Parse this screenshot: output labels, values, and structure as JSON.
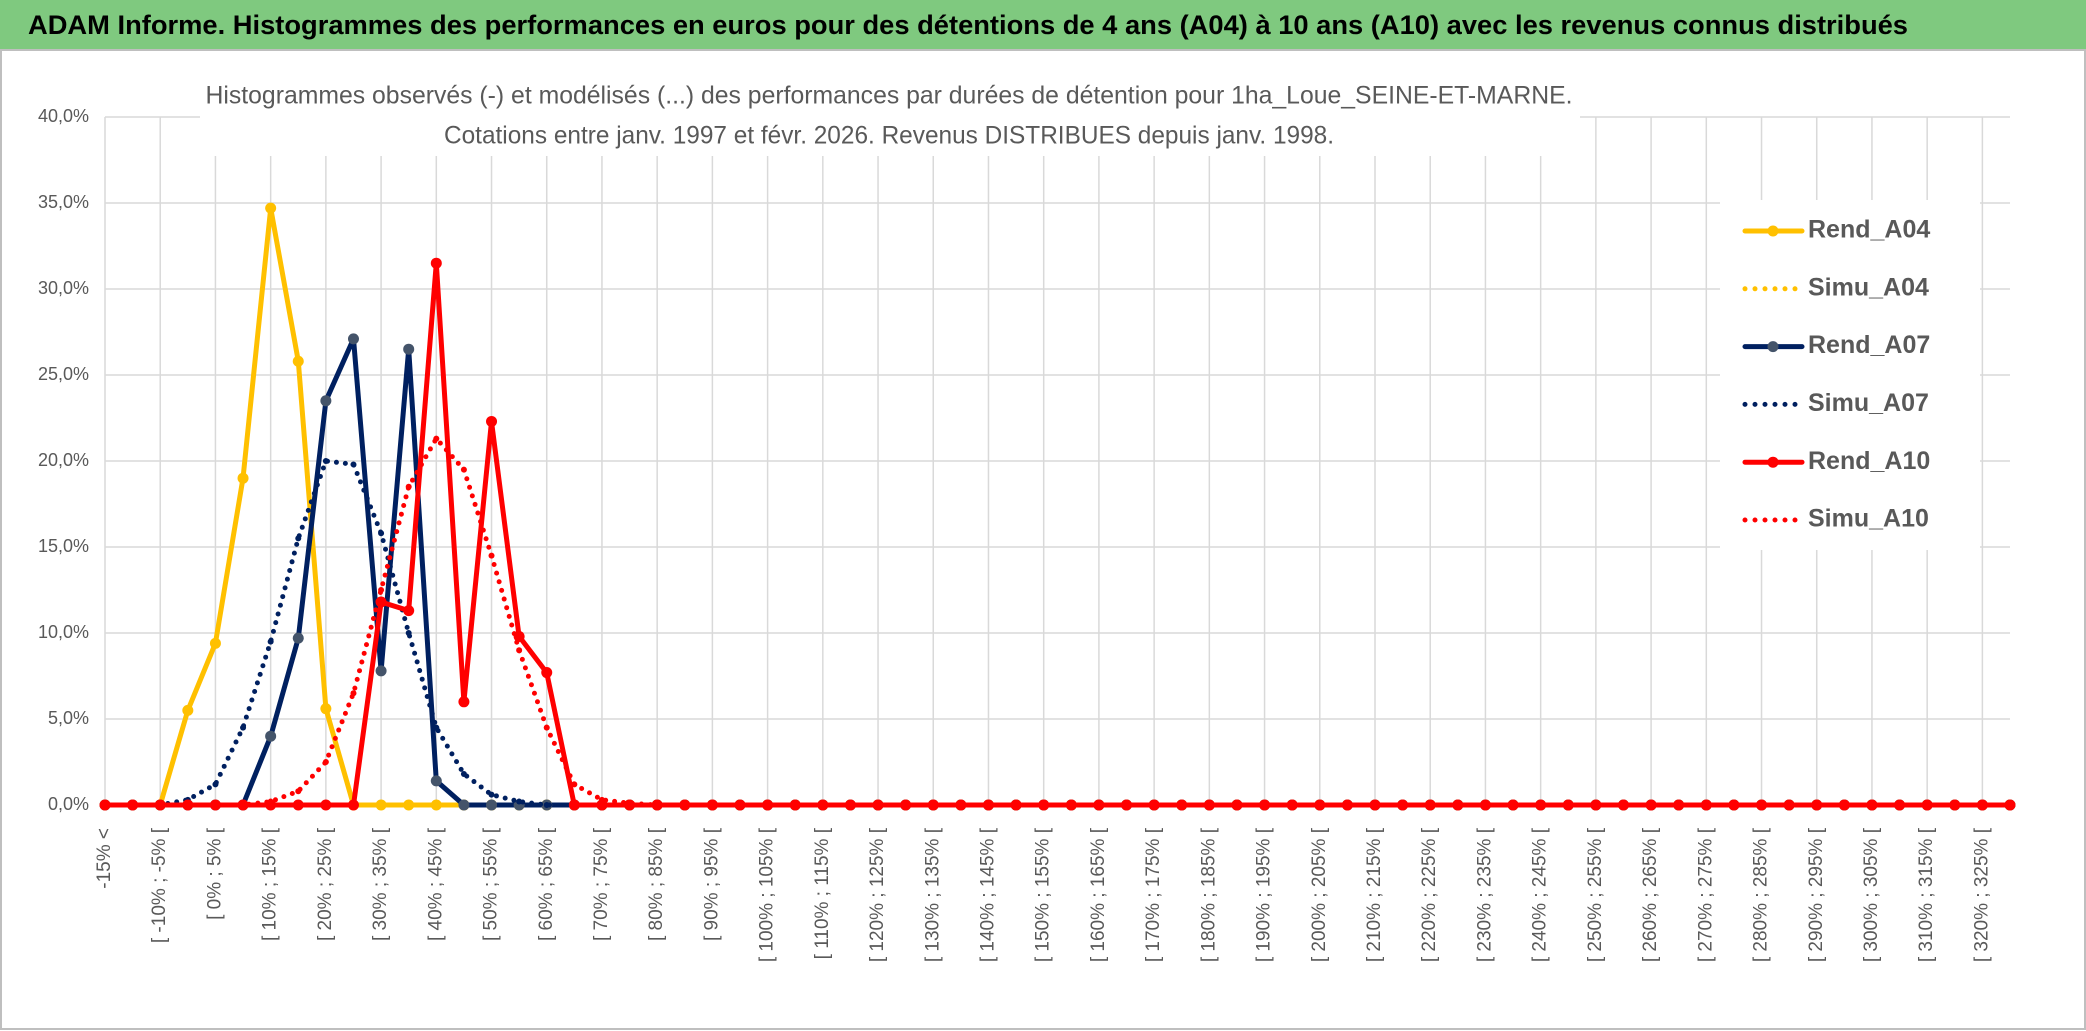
{
  "page_title": "ADAM Informe. Histogrammes des performances en euros pour des détentions de 4 ans (A04) à 10 ans (A10) avec les revenus connus distribués",
  "chart_data": {
    "type": "line",
    "title": "Histogrammes observés (-) et modélisés (...) des performances par durées de détention pour 1ha_Loue_SEINE-ET-MARNE.",
    "subtitle": "Cotations entre janv. 1997 et févr. 2026. Revenus DISTRIBUES depuis janv. 1998.",
    "categories": [
      "-15% <",
      null,
      "[ -10% ; -5% [",
      null,
      "[ 0% ; 5% [",
      null,
      "[ 10% ; 15% [",
      null,
      "[ 20% ; 25% [",
      null,
      "[ 30% ; 35% [",
      null,
      "[ 40% ; 45% [",
      null,
      "[ 50% ; 55% [",
      null,
      "[ 60% ; 65% [",
      null,
      "[ 70% ; 75% [",
      null,
      "[ 80% ; 85% [",
      null,
      "[ 90% ; 95% [",
      null,
      "[ 100% ; 105% [",
      null,
      "[ 110% ; 115% [",
      null,
      "[ 120% ; 125% [",
      null,
      "[ 130% ; 135% [",
      null,
      "[ 140% ; 145% [",
      null,
      "[ 150% ; 155% [",
      null,
      "[ 160% ; 165% [",
      null,
      "[ 170% ; 175% [",
      null,
      "[ 180% ; 185% [",
      null,
      "[ 190% ; 195% [",
      null,
      "[ 200% ; 205% [",
      null,
      "[ 210% ; 215% [",
      null,
      "[ 220% ; 225% [",
      null,
      "[ 230% ; 235% [",
      null,
      "[ 240% ; 245% [",
      null,
      "[ 250% ; 255% [",
      null,
      "[ 260% ; 265% [",
      null,
      "[ 270% ; 275% [",
      null,
      "[ 280% ; 285% [",
      null,
      "[ 290% ; 295% [",
      null,
      "[ 300% ; 305% [",
      null,
      "[ 310% ; 315% [",
      null,
      "[ 320% ; 325% [",
      null
    ],
    "series": [
      {
        "name": "Rend_A04",
        "color": "#ffc000",
        "style": "solid",
        "values": [
          0,
          0,
          0,
          5.5,
          9.4,
          19.0,
          34.7,
          25.8,
          5.6,
          0,
          0,
          0,
          0,
          0,
          0,
          0,
          0,
          0,
          0,
          0,
          0,
          0,
          0,
          0,
          0,
          0,
          0,
          0,
          0,
          0,
          0,
          0,
          0,
          0,
          0,
          0,
          0,
          0,
          0,
          0,
          0,
          0,
          0,
          0,
          0,
          0,
          0,
          0,
          0,
          0,
          0,
          0,
          0,
          0,
          0,
          0,
          0,
          0,
          0,
          0,
          0,
          0,
          0,
          0,
          0,
          0,
          0,
          0,
          0,
          0
        ]
      },
      {
        "name": "Simu_A04",
        "color": "#ffc000",
        "style": "dotted",
        "values": [
          0,
          0,
          0,
          0,
          0,
          0,
          0,
          0,
          0,
          0,
          0,
          0,
          0,
          0,
          0,
          0,
          0,
          0,
          0,
          0,
          0,
          0,
          0,
          0,
          0,
          0,
          0,
          0,
          0,
          0,
          0,
          0,
          0,
          0,
          0,
          0,
          0,
          0,
          0,
          0,
          0,
          0,
          0,
          0,
          0,
          0,
          0,
          0,
          0,
          0,
          0,
          0,
          0,
          0,
          0,
          0,
          0,
          0,
          0,
          0,
          0,
          0,
          0,
          0,
          0,
          0,
          0,
          0,
          0,
          0
        ]
      },
      {
        "name": "Rend_A07",
        "color": "#002060",
        "style": "solid",
        "values": [
          0,
          0,
          0,
          0,
          0,
          0,
          4.0,
          9.7,
          23.5,
          27.1,
          7.8,
          26.5,
          1.4,
          0,
          0,
          0,
          0,
          0,
          0,
          0,
          0,
          0,
          0,
          0,
          0,
          0,
          0,
          0,
          0,
          0,
          0,
          0,
          0,
          0,
          0,
          0,
          0,
          0,
          0,
          0,
          0,
          0,
          0,
          0,
          0,
          0,
          0,
          0,
          0,
          0,
          0,
          0,
          0,
          0,
          0,
          0,
          0,
          0,
          0,
          0,
          0,
          0,
          0,
          0,
          0,
          0,
          0,
          0,
          0,
          0
        ]
      },
      {
        "name": "Simu_A07",
        "color": "#002060",
        "style": "dotted",
        "values": [
          0,
          0,
          0,
          0.3,
          1.2,
          4.5,
          9.5,
          15.5,
          20.0,
          19.8,
          15.8,
          10.0,
          4.5,
          1.8,
          0.6,
          0.2,
          0,
          0,
          0,
          0,
          0,
          0,
          0,
          0,
          0,
          0,
          0,
          0,
          0,
          0,
          0,
          0,
          0,
          0,
          0,
          0,
          0,
          0,
          0,
          0,
          0,
          0,
          0,
          0,
          0,
          0,
          0,
          0,
          0,
          0,
          0,
          0,
          0,
          0,
          0,
          0,
          0,
          0,
          0,
          0,
          0,
          0,
          0,
          0,
          0,
          0,
          0,
          0,
          0,
          0
        ]
      },
      {
        "name": "Rend_A10",
        "color": "#ff0000",
        "style": "solid",
        "values": [
          0,
          0,
          0,
          0,
          0,
          0,
          0,
          0,
          0,
          0,
          11.8,
          11.3,
          31.5,
          6.0,
          22.3,
          9.8,
          7.7,
          0,
          0,
          0,
          0,
          0,
          0,
          0,
          0,
          0,
          0,
          0,
          0,
          0,
          0,
          0,
          0,
          0,
          0,
          0,
          0,
          0,
          0,
          0,
          0,
          0,
          0,
          0,
          0,
          0,
          0,
          0,
          0,
          0,
          0,
          0,
          0,
          0,
          0,
          0,
          0,
          0,
          0,
          0,
          0,
          0,
          0,
          0,
          0,
          0,
          0,
          0,
          0,
          0
        ]
      },
      {
        "name": "Simu_A10",
        "color": "#ff0000",
        "style": "dotted",
        "values": [
          0,
          0,
          0,
          0,
          0,
          0,
          0.2,
          0.8,
          2.5,
          6.5,
          12.5,
          18.5,
          21.3,
          19.5,
          14.5,
          9.0,
          4.5,
          1.2,
          0.3,
          0.1,
          0,
          0,
          0,
          0,
          0,
          0,
          0,
          0,
          0,
          0,
          0,
          0,
          0,
          0,
          0,
          0,
          0,
          0,
          0,
          0,
          0,
          0,
          0,
          0,
          0,
          0,
          0,
          0,
          0,
          0,
          0,
          0,
          0,
          0,
          0,
          0,
          0,
          0,
          0,
          0,
          0,
          0,
          0,
          0,
          0,
          0,
          0,
          0,
          0,
          0
        ]
      }
    ],
    "ylim": [
      0,
      40
    ],
    "yticks": [
      {
        "value": 0,
        "label": "0,0%"
      },
      {
        "value": 5,
        "label": "5,0%"
      },
      {
        "value": 10,
        "label": "10,0%"
      },
      {
        "value": 15,
        "label": "15,0%"
      },
      {
        "value": 20,
        "label": "20,0%"
      },
      {
        "value": 25,
        "label": "25,0%"
      },
      {
        "value": 30,
        "label": "30,0%"
      },
      {
        "value": 35,
        "label": "35,0%"
      },
      {
        "value": 40,
        "label": "40,0%"
      }
    ],
    "grid": true,
    "legend": "right"
  }
}
